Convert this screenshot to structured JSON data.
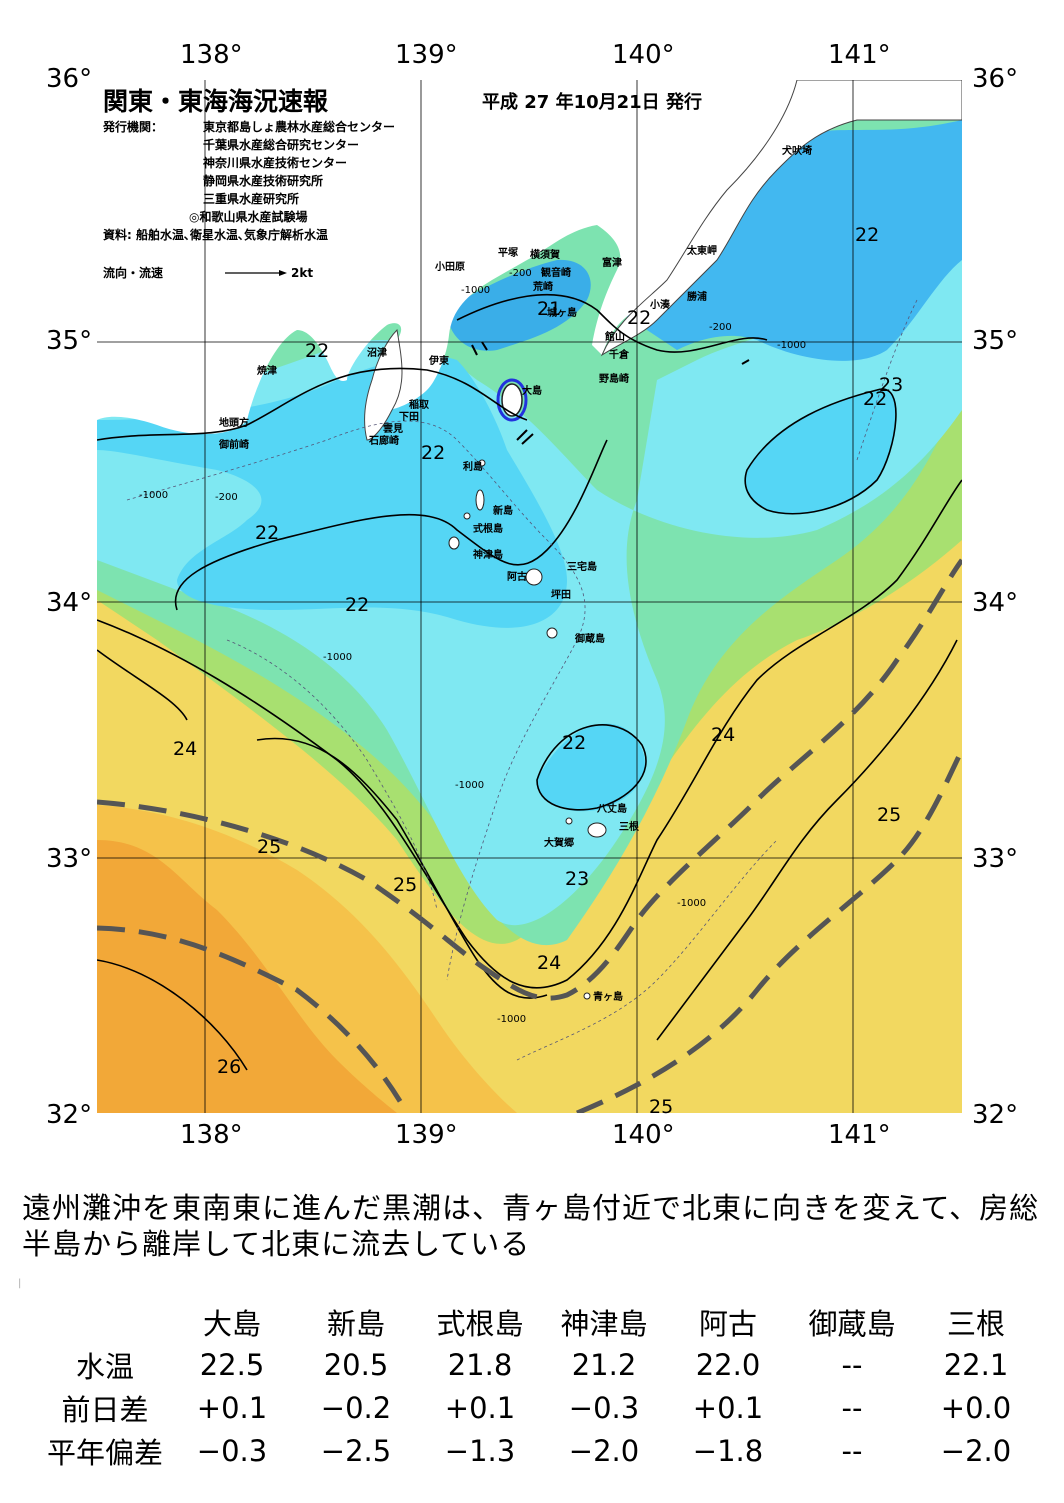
{
  "map": {
    "title": "関東・東海海況速報",
    "issue_date": "平成 27 年10月21日 発行",
    "agency_label": "発行機関：",
    "agencies": [
      "東京都島しょ農林水産総合センター",
      "千葉県水産総合研究センター",
      "神奈川県水産技術センター",
      "静岡県水産技術研究所",
      "三重県水産研究所",
      "◎和歌山県水産試験場"
    ],
    "sources": "資料: 船舶水温､衛星水温､気象庁解析水温",
    "current_legend": "流向・流速",
    "current_scale": "2kt",
    "lon_labels": [
      "138°",
      "139°",
      "140°",
      "141°"
    ],
    "lat_labels": [
      "36°",
      "35°",
      "34°",
      "33°",
      "32°"
    ],
    "places": {
      "inubosaki": "犬吠埼",
      "taitomisaki": "太東岬",
      "katsuura": "勝浦",
      "kominato": "小湊",
      "futtsu": "富津",
      "kannonzaki": "観音崎",
      "yokosuka": "横須賀",
      "hiratsuka": "平塚",
      "odawara": "小田原",
      "araki": "荒崎",
      "jogasaki": "城ヶ島",
      "tateyama": "館山",
      "chikura": "千倉",
      "nojimazaki": "野島崎",
      "ito": "伊東",
      "numazu": "沼津",
      "yaizu": "焼津",
      "omaezaki": "御前崎",
      "chitoukata": "地頭方",
      "inatori": "稲取",
      "shimoda": "下田",
      "kumomi": "雲見",
      "irozaki": "石廊崎",
      "oshima": "大島",
      "toshima": "利島",
      "niijima": "新島",
      "shikinejima": "式根島",
      "kozushima": "神津島",
      "miyakejima": "三宅島",
      "ako": "阿古",
      "tsubota": "坪田",
      "mikurajima": "御蔵島",
      "hachijojima": "八丈島",
      "mitsune": "三根",
      "okago": "大賀郷",
      "aogashima": "青ヶ島"
    },
    "contour_labels": {
      "t22": "22",
      "t21": "21",
      "t23": "23",
      "t24": "24",
      "t25": "25",
      "t26": "26"
    },
    "depth_labels": {
      "d200": "-200",
      "d1000": "-1000"
    },
    "colors": {
      "kuroshio_axis": "#555555",
      "cold_blue": "#3399ee",
      "warm_orange": "#f0a030"
    }
  },
  "description": "遠州灘沖を東南東に進んだ黒潮は、青ヶ島付近で北東に向きを変えて、房総半島から離岸して北東に流去している",
  "table": {
    "headers": [
      "",
      "大島",
      "新島",
      "式根島",
      "神津島",
      "阿古",
      "御蔵島",
      "三根"
    ],
    "rows": [
      {
        "label": "水温",
        "values": [
          "22.5",
          "20.5",
          "21.8",
          "21.2",
          "22.0",
          "--",
          "22.1"
        ]
      },
      {
        "label": "前日差",
        "values": [
          "+0.1",
          "−0.2",
          "+0.1",
          "−0.3",
          "+0.1",
          "--",
          "+0.0"
        ]
      },
      {
        "label": "平年偏差",
        "values": [
          "−0.3",
          "−2.5",
          "−1.3",
          "−2.0",
          "−1.8",
          "--",
          "−2.0"
        ]
      }
    ]
  }
}
